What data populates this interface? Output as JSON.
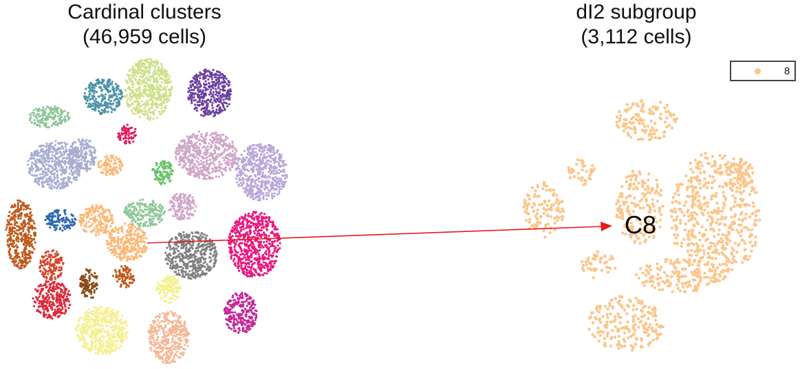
{
  "chart_data": [
    {
      "type": "scatter",
      "title": "Cardinal clusters",
      "subtitle": "(46,959 cells)",
      "xlabel": "",
      "ylabel": "",
      "grid": false,
      "colors": [
        "#cfe08a",
        "#4b93a8",
        "#6b3fa0",
        "#8ec79a",
        "#e0195a",
        "#a7aed0",
        "#cfa6c8",
        "#68c26a",
        "#b8a7d8",
        "#bf5a1c",
        "#2f68b0",
        "#fbb874",
        "#808080",
        "#e8187e",
        "#d5462a",
        "#8a4a16",
        "#c05a1c",
        "#dc2a3a",
        "#f5ef8e",
        "#f5b897",
        "#c4279a"
      ]
    },
    {
      "type": "scatter",
      "title": "dI2 subgroup",
      "subtitle": "(3,112 cells)",
      "legend": {
        "placement": "top-right",
        "entries": [
          {
            "label": "8",
            "color": "#fbc68c"
          }
        ]
      },
      "annotation": "C8",
      "grid": false
    }
  ]
}
